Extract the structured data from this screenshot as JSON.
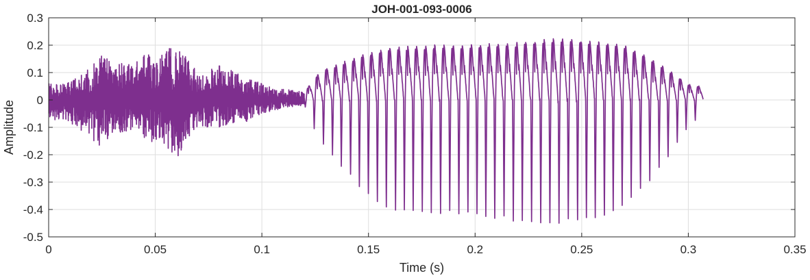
{
  "chart_data": {
    "type": "line",
    "title": "JOH-001-093-0006",
    "xlabel": "Time (s)",
    "ylabel": "Amplitude",
    "xlim": [
      0,
      0.35
    ],
    "ylim": [
      -0.5,
      0.3
    ],
    "xticks": [
      0,
      0.05,
      0.1,
      0.15,
      0.2,
      0.25,
      0.3,
      0.35
    ],
    "xtick_labels": [
      "0",
      "0.05",
      "0.1",
      "0.15",
      "0.2",
      "0.25",
      "0.3",
      "0.35"
    ],
    "yticks": [
      -0.5,
      -0.4,
      -0.3,
      -0.2,
      -0.1,
      0,
      0.1,
      0.2,
      0.3
    ],
    "ytick_labels": [
      "-0.5",
      "-0.4",
      "-0.3",
      "-0.2",
      "-0.1",
      "0",
      "0.1",
      "0.2",
      "0.3"
    ],
    "grid": true,
    "series": [
      {
        "color": "#7e2f8e",
        "segments": [
          {
            "kind": "noise",
            "x_start": 0,
            "x_end": 0.12,
            "envelope": [
              [
                0,
                -0.07,
                0.06
              ],
              [
                0.01,
                -0.08,
                0.07
              ],
              [
                0.02,
                -0.15,
                0.12
              ],
              [
                0.025,
                -0.17,
                0.17
              ],
              [
                0.03,
                -0.12,
                0.14
              ],
              [
                0.04,
                -0.12,
                0.13
              ],
              [
                0.045,
                -0.14,
                0.18
              ],
              [
                0.05,
                -0.16,
                0.14
              ],
              [
                0.055,
                -0.17,
                0.19
              ],
              [
                0.06,
                -0.22,
                0.2
              ],
              [
                0.065,
                -0.15,
                0.15
              ],
              [
                0.07,
                -0.1,
                0.1
              ],
              [
                0.08,
                -0.1,
                0.13
              ],
              [
                0.09,
                -0.09,
                0.09
              ],
              [
                0.1,
                -0.05,
                0.06
              ],
              [
                0.11,
                -0.03,
                0.04
              ],
              [
                0.12,
                -0.02,
                0.03
              ]
            ]
          },
          {
            "kind": "periodic",
            "x_start": 0.12,
            "x_end": 0.307,
            "period": 0.00425,
            "envelope": [
              [
                0.12,
                -0.02,
                0.03
              ],
              [
                0.125,
                -0.12,
                0.09
              ],
              [
                0.13,
                -0.18,
                0.12
              ],
              [
                0.14,
                -0.27,
                0.15
              ],
              [
                0.15,
                -0.36,
                0.18
              ],
              [
                0.16,
                -0.41,
                0.2
              ],
              [
                0.18,
                -0.42,
                0.21
              ],
              [
                0.2,
                -0.43,
                0.21
              ],
              [
                0.22,
                -0.45,
                0.22
              ],
              [
                0.24,
                -0.46,
                0.235
              ],
              [
                0.26,
                -0.44,
                0.22
              ],
              [
                0.27,
                -0.39,
                0.21
              ],
              [
                0.28,
                -0.32,
                0.17
              ],
              [
                0.29,
                -0.22,
                0.12
              ],
              [
                0.3,
                -0.1,
                0.06
              ],
              [
                0.307,
                -0.05,
                0.05
              ]
            ]
          }
        ]
      }
    ]
  }
}
